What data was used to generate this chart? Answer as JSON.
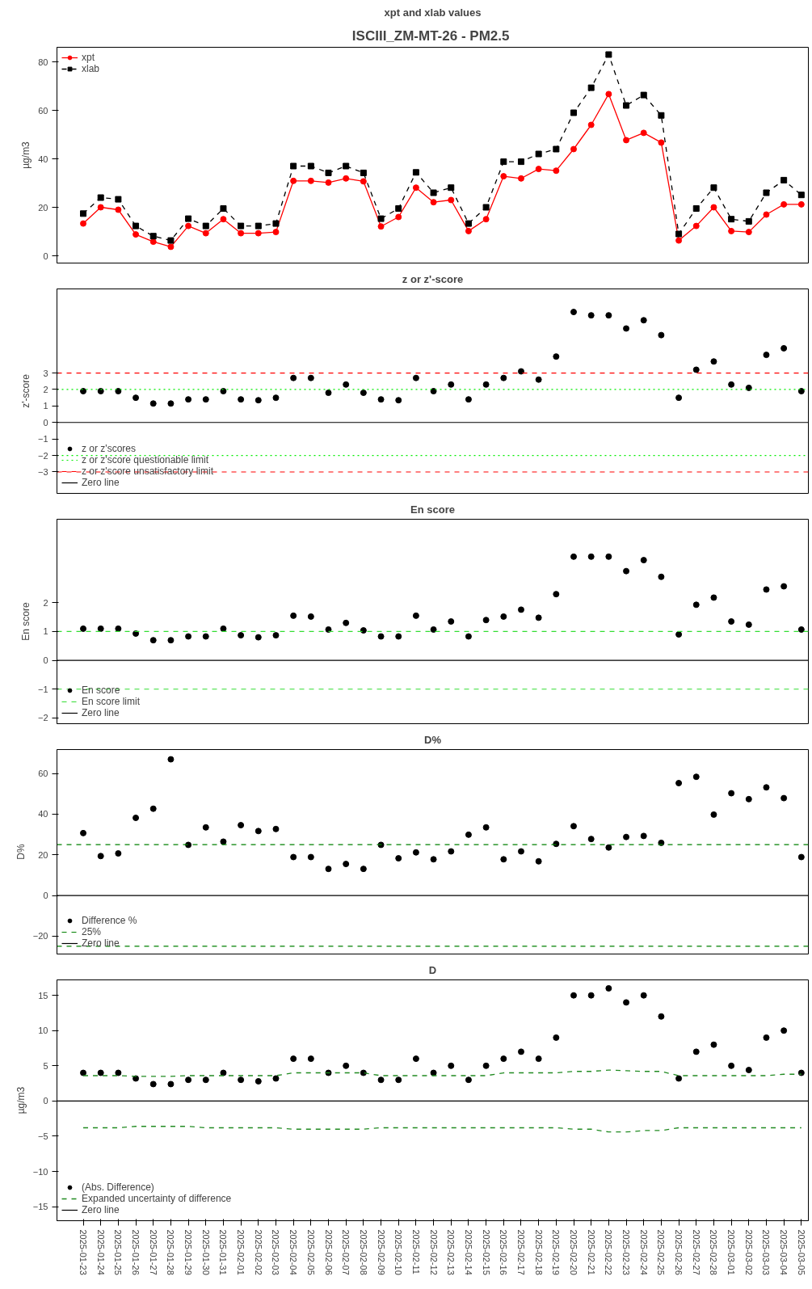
{
  "chart_data": [
    {
      "type": "line",
      "title": "xpt and xlab values",
      "annotations": [
        "ISCIII_ZM-MT-26  - PM2.5"
      ],
      "ylabel": "µg/m3",
      "tick_labels": "y",
      "legend": "top left",
      "grid": false,
      "categories": [
        "2025-01-23",
        "2025-01-24",
        "2025-01-25",
        "2025-01-26",
        "2025-01-27",
        "2025-01-28",
        "2025-01-29",
        "2025-01-30",
        "2025-01-31",
        "2025-02-01",
        "2025-02-02",
        "2025-02-03",
        "2025-02-04",
        "2025-02-05",
        "2025-02-06",
        "2025-02-07",
        "2025-02-08",
        "2025-02-09",
        "2025-02-10",
        "2025-02-11",
        "2025-02-12",
        "2025-02-13",
        "2025-02-14",
        "2025-02-15",
        "2025-02-16",
        "2025-02-17",
        "2025-02-18",
        "2025-02-19",
        "2025-02-20",
        "2025-02-21",
        "2025-02-22",
        "2025-02-23",
        "2025-02-24",
        "2025-02-25",
        "2025-02-26",
        "2025-02-27",
        "2025-02-28",
        "2025-03-01",
        "2025-03-02",
        "2025-03-03",
        "2025-03-04",
        "2025-03-05"
      ],
      "ylim": [
        -3,
        86
      ],
      "yticks": [
        0,
        20,
        40,
        60,
        80
      ],
      "series": [
        {
          "name": "xpt",
          "color": "#ff0000",
          "marker": "circle",
          "line_style": "solid",
          "values": [
            13.3,
            20,
            19,
            8.8,
            5.8,
            3.7,
            12.3,
            9.3,
            15.1,
            9.3,
            9.3,
            9.8,
            30.9,
            30.9,
            30.2,
            31.9,
            30.7,
            12.1,
            16,
            28.1,
            22.1,
            23,
            10.2,
            15.1,
            32.8,
            31.9,
            35.8,
            35.1,
            44,
            54,
            66.7,
            47.7,
            50.7,
            46.7,
            6.3,
            12.3,
            20,
            10.2,
            9.8,
            17,
            21.2,
            21.2
          ]
        },
        {
          "name": "xlab",
          "color": "#000000",
          "marker": "square",
          "line_style": "dashed",
          "values": [
            17.4,
            24,
            23.3,
            12.3,
            8.1,
            6.3,
            15.3,
            12.3,
            19.5,
            12.3,
            12.3,
            13.3,
            37,
            37,
            34.2,
            37,
            34.2,
            15.3,
            19.5,
            34.4,
            26,
            28.1,
            13.3,
            20,
            38.8,
            38.8,
            42,
            44,
            59,
            69.3,
            83,
            62,
            66.3,
            57.9,
            9,
            19.5,
            28.1,
            15.1,
            14.2,
            26,
            31.2,
            25.1
          ]
        }
      ]
    },
    {
      "type": "scatter",
      "title": "z or z'-score",
      "ylabel": "z'-score",
      "tick_labels": "y",
      "legend": "bottom left",
      "grid": false,
      "marker": "circle",
      "categories": [
        "2025-01-23",
        "2025-01-24",
        "2025-01-25",
        "2025-01-26",
        "2025-01-27",
        "2025-01-28",
        "2025-01-29",
        "2025-01-30",
        "2025-01-31",
        "2025-02-01",
        "2025-02-02",
        "2025-02-03",
        "2025-02-04",
        "2025-02-05",
        "2025-02-06",
        "2025-02-07",
        "2025-02-08",
        "2025-02-09",
        "2025-02-10",
        "2025-02-11",
        "2025-02-12",
        "2025-02-13",
        "2025-02-14",
        "2025-02-15",
        "2025-02-16",
        "2025-02-17",
        "2025-02-18",
        "2025-02-19",
        "2025-02-20",
        "2025-02-21",
        "2025-02-22",
        "2025-02-23",
        "2025-02-24",
        "2025-02-25",
        "2025-02-26",
        "2025-02-27",
        "2025-02-28",
        "2025-03-01",
        "2025-03-02",
        "2025-03-03",
        "2025-03-04",
        "2025-03-05"
      ],
      "ylim": [
        -4.3,
        8.1
      ],
      "yticks": [
        -3,
        -2,
        -1,
        0,
        1,
        2,
        3
      ],
      "series": [
        {
          "name": "z or z'scores",
          "color": "#000000",
          "values": [
            1.9,
            1.9,
            1.9,
            1.5,
            1.15,
            1.15,
            1.4,
            1.4,
            1.9,
            1.4,
            1.35,
            1.5,
            2.7,
            2.7,
            1.8,
            2.3,
            1.8,
            1.4,
            1.35,
            2.7,
            1.9,
            2.3,
            1.4,
            2.3,
            2.7,
            3.1,
            2.6,
            4.0,
            6.7,
            6.5,
            6.5,
            5.7,
            6.2,
            5.3,
            1.5,
            3.2,
            3.7,
            2.3,
            2.1,
            4.1,
            4.5,
            1.9
          ]
        }
      ],
      "ref_lines": [
        {
          "axis": "y",
          "value": 2,
          "label": "z or z'score questionable limit",
          "color": "#00ee00",
          "line_style": "dotted"
        },
        {
          "axis": "y",
          "value": -2,
          "color": "#00ee00",
          "line_style": "dotted"
        },
        {
          "axis": "y",
          "value": 3,
          "label": "z or z'score unsatisfactory limit",
          "color": "#ff0000",
          "line_style": "dashed"
        },
        {
          "axis": "y",
          "value": -3,
          "color": "#ff0000",
          "line_style": "dashed"
        },
        {
          "axis": "y",
          "value": 0,
          "label": "Zero line",
          "color": "#000000",
          "line_style": "solid"
        }
      ]
    },
    {
      "type": "scatter",
      "title": "En score",
      "ylabel": "En score",
      "tick_labels": "y",
      "legend": "bottom left",
      "grid": false,
      "marker": "circle",
      "categories": [
        "2025-01-23",
        "2025-01-24",
        "2025-01-25",
        "2025-01-26",
        "2025-01-27",
        "2025-01-28",
        "2025-01-29",
        "2025-01-30",
        "2025-01-31",
        "2025-02-01",
        "2025-02-02",
        "2025-02-03",
        "2025-02-04",
        "2025-02-05",
        "2025-02-06",
        "2025-02-07",
        "2025-02-08",
        "2025-02-09",
        "2025-02-10",
        "2025-02-11",
        "2025-02-12",
        "2025-02-13",
        "2025-02-14",
        "2025-02-15",
        "2025-02-16",
        "2025-02-17",
        "2025-02-18",
        "2025-02-19",
        "2025-02-20",
        "2025-02-21",
        "2025-02-22",
        "2025-02-23",
        "2025-02-24",
        "2025-02-25",
        "2025-02-26",
        "2025-02-27",
        "2025-02-28",
        "2025-03-01",
        "2025-03-02",
        "2025-03-03",
        "2025-03-04",
        "2025-03-05"
      ],
      "ylim": [
        -2.2,
        4.9
      ],
      "yticks": [
        -2,
        -1,
        0,
        1,
        2
      ],
      "series": [
        {
          "name": "En score",
          "color": "#000000",
          "values": [
            1.1,
            1.1,
            1.1,
            0.93,
            0.7,
            0.7,
            0.83,
            0.83,
            1.1,
            0.87,
            0.8,
            0.87,
            1.55,
            1.52,
            1.07,
            1.3,
            1.04,
            0.83,
            0.83,
            1.55,
            1.07,
            1.35,
            0.83,
            1.4,
            1.52,
            1.76,
            1.48,
            2.3,
            3.6,
            3.6,
            3.6,
            3.1,
            3.48,
            2.9,
            0.9,
            1.93,
            2.18,
            1.35,
            1.24,
            2.46,
            2.57,
            1.07
          ]
        }
      ],
      "ref_lines": [
        {
          "axis": "y",
          "value": 1,
          "label": "En score limit",
          "color": "#33dd33",
          "line_style": "dashed"
        },
        {
          "axis": "y",
          "value": -1,
          "color": "#33dd33",
          "line_style": "dashed"
        },
        {
          "axis": "y",
          "value": 0,
          "label": "Zero line",
          "color": "#000000",
          "line_style": "solid"
        }
      ]
    },
    {
      "type": "scatter",
      "title": "D%",
      "ylabel": "D%",
      "tick_labels": "y",
      "legend": "bottom left",
      "grid": false,
      "marker": "circle",
      "categories": [
        "2025-01-23",
        "2025-01-24",
        "2025-01-25",
        "2025-01-26",
        "2025-01-27",
        "2025-01-28",
        "2025-01-29",
        "2025-01-30",
        "2025-01-31",
        "2025-02-01",
        "2025-02-02",
        "2025-02-03",
        "2025-02-04",
        "2025-02-05",
        "2025-02-06",
        "2025-02-07",
        "2025-02-08",
        "2025-02-09",
        "2025-02-10",
        "2025-02-11",
        "2025-02-12",
        "2025-02-13",
        "2025-02-14",
        "2025-02-15",
        "2025-02-16",
        "2025-02-17",
        "2025-02-18",
        "2025-02-19",
        "2025-02-20",
        "2025-02-21",
        "2025-02-22",
        "2025-02-23",
        "2025-02-24",
        "2025-02-25",
        "2025-02-26",
        "2025-02-27",
        "2025-02-28",
        "2025-03-01",
        "2025-03-02",
        "2025-03-03",
        "2025-03-04",
        "2025-03-05"
      ],
      "ylim": [
        -28.8,
        71.8
      ],
      "yticks": [
        -20,
        0,
        20,
        40,
        60
      ],
      "series": [
        {
          "name": "Difference %",
          "color": "#000000",
          "values": [
            30.7,
            19.4,
            20.7,
            38.2,
            42.7,
            67,
            24.9,
            33.5,
            26.5,
            34.6,
            31.7,
            32.7,
            18.9,
            18.9,
            13.1,
            15.5,
            13.1,
            24.9,
            18.3,
            21.2,
            17.8,
            21.7,
            29.9,
            33.5,
            17.8,
            21.7,
            16.8,
            25.4,
            34.1,
            27.8,
            23.6,
            28.8,
            29.3,
            25.9,
            55.3,
            58.4,
            39.8,
            50.3,
            47.4,
            53.2,
            47.9,
            18.9
          ]
        }
      ],
      "ref_lines": [
        {
          "axis": "y",
          "value": 25,
          "label": "25%",
          "color": "#008000",
          "line_style": "dashed"
        },
        {
          "axis": "y",
          "value": -25,
          "color": "#008000",
          "line_style": "dashed"
        },
        {
          "axis": "y",
          "value": 0,
          "label": "Zero line",
          "color": "#000000",
          "line_style": "solid"
        }
      ]
    },
    {
      "type": "scatter",
      "title": "D",
      "ylabel": "µg/m3",
      "legend": "bottom left",
      "grid": false,
      "marker": "circle",
      "categories": [
        "2025-01-23",
        "2025-01-24",
        "2025-01-25",
        "2025-01-26",
        "2025-01-27",
        "2025-01-28",
        "2025-01-29",
        "2025-01-30",
        "2025-01-31",
        "2025-02-01",
        "2025-02-02",
        "2025-02-03",
        "2025-02-04",
        "2025-02-05",
        "2025-02-06",
        "2025-02-07",
        "2025-02-08",
        "2025-02-09",
        "2025-02-10",
        "2025-02-11",
        "2025-02-12",
        "2025-02-13",
        "2025-02-14",
        "2025-02-15",
        "2025-02-16",
        "2025-02-17",
        "2025-02-18",
        "2025-02-19",
        "2025-02-20",
        "2025-02-21",
        "2025-02-22",
        "2025-02-23",
        "2025-02-24",
        "2025-02-25",
        "2025-02-26",
        "2025-02-27",
        "2025-02-28",
        "2025-03-01",
        "2025-03-02",
        "2025-03-03",
        "2025-03-04",
        "2025-03-05"
      ],
      "ylim": [
        -17,
        17.2
      ],
      "yticks": [
        -15,
        -10,
        -5,
        0,
        5,
        10,
        15
      ],
      "series": [
        {
          "name": "(Abs. Difference)",
          "color": "#000000",
          "values": [
            4,
            4,
            4,
            3.2,
            2.4,
            2.4,
            3,
            3,
            4,
            3,
            2.8,
            3.2,
            6,
            6,
            4,
            5,
            4,
            3,
            3,
            6,
            4,
            5,
            3,
            5,
            6,
            7,
            6,
            9,
            15,
            15,
            16,
            14,
            15,
            12,
            3.2,
            7,
            8,
            5,
            4.4,
            9,
            10,
            4
          ]
        },
        {
          "name": "Expanded uncertainty of difference",
          "type": "line",
          "color": "#228b22",
          "line_style": "dashed",
          "marker": "none",
          "values": [
            3.6,
            3.6,
            3.6,
            3.5,
            3.5,
            3.5,
            3.6,
            3.6,
            3.6,
            3.6,
            3.6,
            3.6,
            4,
            4,
            4,
            4,
            4,
            3.6,
            3.6,
            3.6,
            3.6,
            3.6,
            3.6,
            3.6,
            4,
            4,
            4,
            4,
            4.2,
            4.2,
            4.4,
            4.3,
            4.2,
            4.2,
            3.6,
            3.6,
            3.6,
            3.6,
            3.6,
            3.6,
            3.8,
            3.8
          ]
        },
        {
          "type": "line",
          "color": "#228b22",
          "line_style": "dashed",
          "marker": "none",
          "values": [
            -3.8,
            -3.8,
            -3.8,
            -3.6,
            -3.6,
            -3.6,
            -3.6,
            -3.8,
            -3.8,
            -3.8,
            -3.8,
            -3.8,
            -4,
            -4,
            -4,
            -4,
            -4,
            -3.8,
            -3.8,
            -3.8,
            -3.8,
            -3.8,
            -3.8,
            -3.8,
            -3.8,
            -3.8,
            -3.8,
            -3.8,
            -4,
            -4,
            -4.4,
            -4.4,
            -4.2,
            -4.2,
            -3.8,
            -3.8,
            -3.8,
            -3.8,
            -3.8,
            -3.8,
            -3.8,
            -3.8
          ]
        }
      ],
      "ref_lines": [
        {
          "axis": "y",
          "value": 0,
          "label": "Zero line",
          "color": "#000000",
          "line_style": "solid"
        }
      ]
    }
  ]
}
